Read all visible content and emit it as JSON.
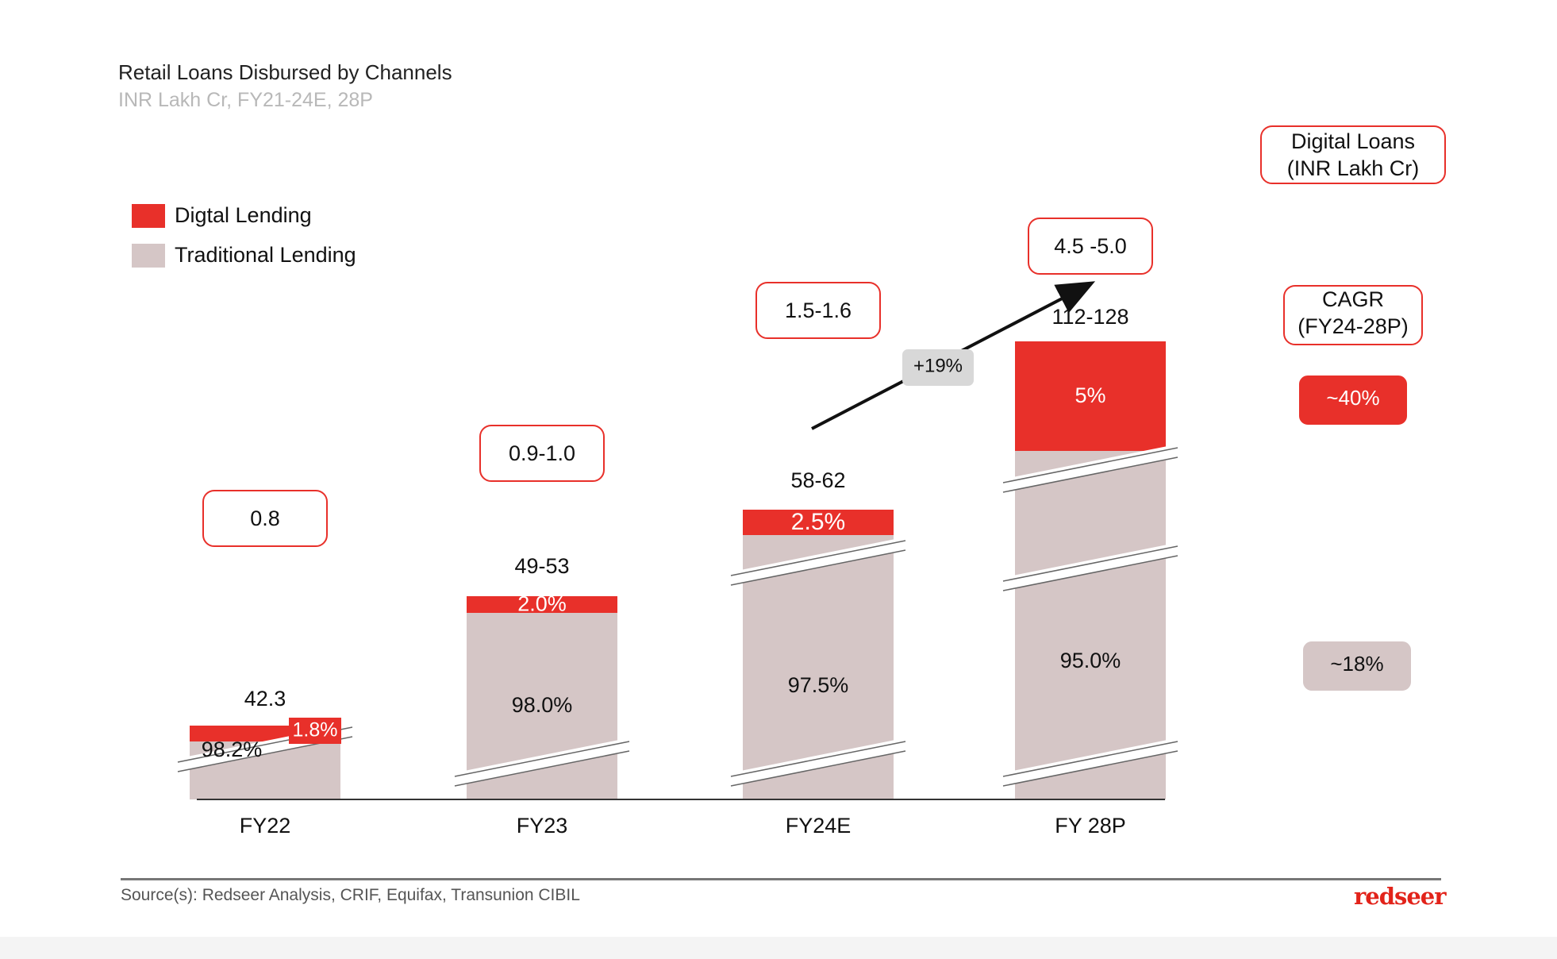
{
  "header": {
    "title": "Retail Loans Disbursed by Channels",
    "subtitle": "INR Lakh Cr, FY21-24E, 28P"
  },
  "legend": [
    {
      "label": "Digtal Lending",
      "color": "#e8302a"
    },
    {
      "label": "Traditional Lending",
      "color": "#d5c6c6"
    }
  ],
  "right_panel": {
    "digital_header": "Digital Loans\n(INR Lakh Cr)",
    "cagr_header": "CAGR\n(FY24-28P)",
    "digital_cagr": "~40%",
    "traditional_cagr": "~18%"
  },
  "footer": {
    "source": "Source(s): Redseer Analysis,  CRIF, Equifax, Transunion CIBIL",
    "logo": "redseer"
  },
  "chart_data": {
    "type": "bar",
    "categories": [
      "FY22",
      "FY23",
      "FY24E",
      "FY 28P"
    ],
    "total_labels": [
      "42.3",
      "49-53",
      "58-62",
      "112-128"
    ],
    "digital_loans_labels": [
      "0.8",
      "0.9-1.0",
      "1.5-1.6",
      "4.5 -5.0"
    ],
    "series": [
      {
        "name": "Digtal Lending",
        "values": [
          1.8,
          2.0,
          2.5,
          5.0
        ],
        "labels": [
          "1.8%",
          "2.0%",
          "2.5%",
          "5%"
        ]
      },
      {
        "name": "Traditional Lending",
        "values": [
          98.2,
          98.0,
          97.5,
          95.0
        ],
        "labels": [
          "98.2%",
          "98.0%",
          "97.5%",
          "95.0%"
        ]
      }
    ],
    "growth_annotation": "+19%",
    "colors": {
      "digital": "#e8302a",
      "traditional": "#d5c6c6"
    }
  }
}
